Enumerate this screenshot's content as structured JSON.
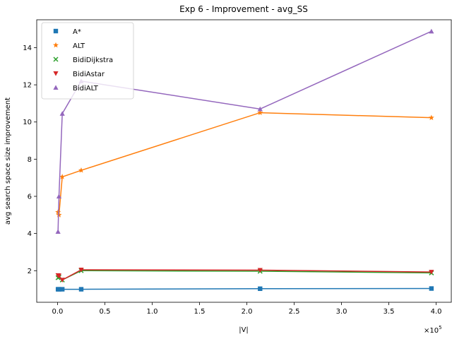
{
  "chart_data": {
    "type": "line",
    "title": "Exp 6 - Improvement - avg_SS",
    "xlabel": "|V|",
    "ylabel": "avg search space size improvement",
    "x_offset_label": "×10^5",
    "x_scale": 100000,
    "xlim": [
      -22000,
      416000
    ],
    "ylim": [
      0.3,
      15.5
    ],
    "x_ticks": [
      0,
      50000,
      100000,
      150000,
      200000,
      250000,
      300000,
      350000,
      400000
    ],
    "x_tick_labels": [
      "0.0",
      "0.5",
      "1.0",
      "1.5",
      "2.0",
      "2.5",
      "3.0",
      "3.5",
      "4.0"
    ],
    "y_ticks": [
      2,
      4,
      6,
      8,
      10,
      12,
      14
    ],
    "y_tick_labels": [
      "2",
      "4",
      "6",
      "8",
      "10",
      "12",
      "14"
    ],
    "grid": false,
    "legend_position": "top-left",
    "x": [
      500,
      1500,
      5000,
      25000,
      214000,
      395000
    ],
    "series": [
      {
        "name": "A*",
        "marker": "square",
        "color": "#1f77b4",
        "values": [
          1.0,
          1.0,
          1.0,
          1.0,
          1.03,
          1.04
        ]
      },
      {
        "name": "ALT",
        "marker": "star",
        "color": "#ff7f0e",
        "values": [
          5.15,
          5.0,
          7.05,
          7.4,
          10.5,
          10.23
        ]
      },
      {
        "name": "BidiDijkstra",
        "marker": "x",
        "color": "#2ca02c",
        "values": [
          1.62,
          1.65,
          1.5,
          2.0,
          1.97,
          1.88
        ]
      },
      {
        "name": "BidiAstar",
        "marker": "triangle-down",
        "color": "#d62728",
        "values": [
          1.75,
          1.73,
          1.5,
          2.05,
          2.03,
          1.93
        ]
      },
      {
        "name": "BidiALT",
        "marker": "triangle-up",
        "color": "#9467bd",
        "values": [
          4.1,
          6.0,
          10.45,
          12.2,
          10.7,
          14.88
        ]
      }
    ]
  }
}
